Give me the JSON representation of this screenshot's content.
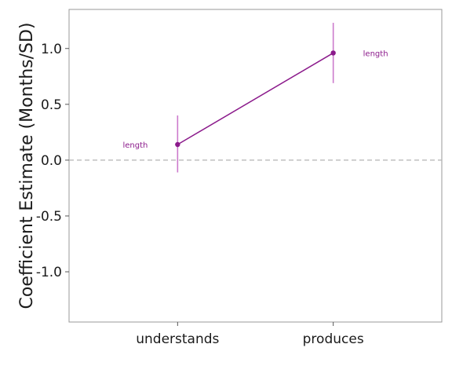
{
  "chart_data": {
    "type": "line",
    "title": "",
    "xlabel": "",
    "ylabel": "Coefficient Estimate (Months/SD)",
    "categories": [
      "understands",
      "produces"
    ],
    "ylim": [
      -1.45,
      1.35
    ],
    "yticks": [
      1.0,
      0.5,
      0.0,
      -0.5,
      -1.0
    ],
    "ytick_labels": [
      "1.0",
      "0.5",
      "0.0",
      "-0.5",
      "-1.0"
    ],
    "reference_line": 0.0,
    "grid": false,
    "series": [
      {
        "name": "length",
        "color": "#8b1a8b",
        "errorbar_color": "#cc7acc",
        "values": [
          0.14,
          0.96
        ],
        "lower": [
          -0.11,
          0.69
        ],
        "upper": [
          0.4,
          1.23
        ],
        "labels": [
          {
            "text": "length",
            "position": "left"
          },
          {
            "text": "length",
            "position": "right"
          }
        ]
      }
    ]
  }
}
